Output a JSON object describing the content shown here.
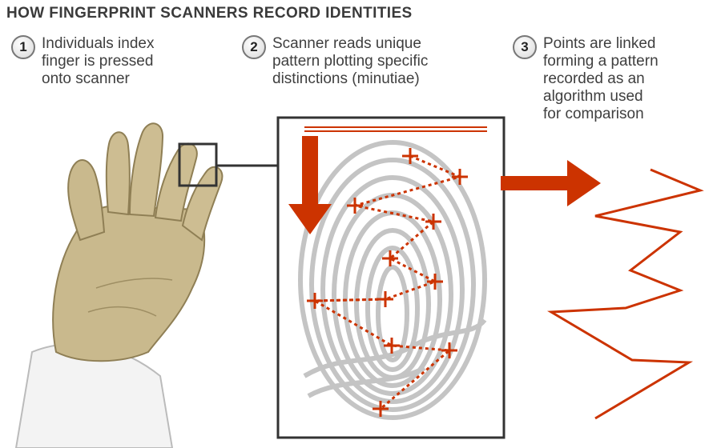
{
  "title": "HOW FINGERPRINT SCANNERS RECORD IDENTITIES",
  "steps": [
    {
      "number": "1",
      "text": "Individuals index\nfinger is pressed\nonto scanner"
    },
    {
      "number": "2",
      "text": "Scanner reads unique\npattern plotting specific\ndistinctions (minutiae)"
    },
    {
      "number": "3",
      "text": "Points are linked\nforming a pattern\nrecorded as an\nalgorithm used\nfor comparison"
    }
  ],
  "colors": {
    "accent": "#cc3300",
    "skin": "#c9b98d",
    "fingerprint": "#c4c4c4",
    "frame": "#333333"
  },
  "icons": [
    "hand-illustration",
    "fingerprint-image",
    "down-arrow-icon",
    "right-arrow-icon",
    "zigzag-pattern"
  ]
}
